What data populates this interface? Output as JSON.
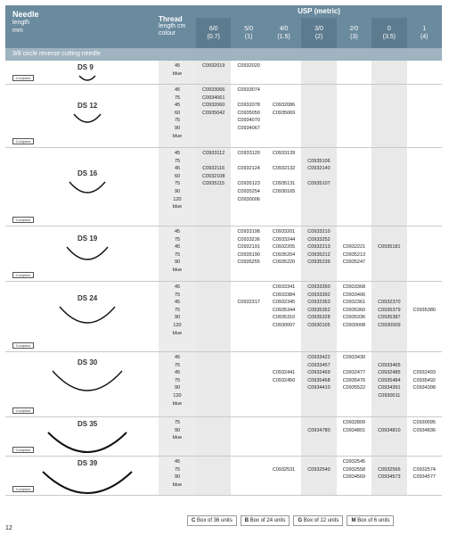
{
  "header": {
    "needle_title": "Needle",
    "needle_sub1": "length",
    "needle_sub2": "mm",
    "thread_title": "Thread",
    "thread_sub1": "length cm",
    "thread_sub2": "colour",
    "usp_title": "USP (metric)",
    "usp_columns": [
      {
        "l1": "6/0",
        "l2": "(0.7)"
      },
      {
        "l1": "5/0",
        "l2": "(1)"
      },
      {
        "l1": "4/0",
        "l2": "(1.5)"
      },
      {
        "l1": "3/0",
        "l2": "(2)"
      },
      {
        "l1": "2/0",
        "l2": "(3)"
      },
      {
        "l1": "0",
        "l2": "(3.5)"
      },
      {
        "l1": "1",
        "l2": "(4)"
      }
    ]
  },
  "subheader": "3/8 circle reverse cutting needle",
  "badge_text": "Coviprice",
  "rows": [
    {
      "name": "DS 9",
      "threads": [
        "45",
        "blue"
      ],
      "cols": [
        [
          "C0932019"
        ],
        [
          "C0932020"
        ],
        [],
        [],
        [],
        [],
        []
      ]
    },
    {
      "name": "DS 12",
      "threads": [
        "45",
        "75",
        "45",
        "60",
        "75",
        "90",
        "blue"
      ],
      "cols": [
        [
          "C0933066",
          "C0934061",
          "C0932060",
          "C0935042"
        ],
        [
          "C0933074",
          "",
          "C0932078",
          "C0935050",
          "C0934070",
          "C0934067"
        ],
        [
          "",
          "",
          "C0932086",
          "C0935069"
        ],
        [],
        [],
        [],
        []
      ]
    },
    {
      "name": "DS 16",
      "threads": [
        "45",
        "75",
        "45",
        "60",
        "75",
        "90",
        "120",
        "blue"
      ],
      "cols": [
        [
          "C0933112",
          "",
          "C0932116",
          "C0932108",
          "C0935115"
        ],
        [
          "C0933120",
          "",
          "C0932124",
          "",
          "C0935123",
          "C0935254",
          "C0930006"
        ],
        [
          "C0933139",
          "",
          "C0932132",
          "",
          "C0935131",
          "C0930165"
        ],
        [
          "",
          "C0935106",
          "C0932140",
          "",
          "C0935107"
        ],
        [],
        [],
        []
      ]
    },
    {
      "name": "DS 19",
      "threads": [
        "45",
        "75",
        "45",
        "75",
        "90",
        "blue"
      ],
      "cols": [
        [],
        [
          "C0933198",
          "C0933236",
          "C0932191",
          "C0935190",
          "C0935255"
        ],
        [
          "C0933201",
          "C0933244",
          "C0932205",
          "C0935204",
          "C0935220"
        ],
        [
          "C0933210",
          "C0933252",
          "C0932213",
          "C0935212",
          "C0935239"
        ],
        [
          "",
          "",
          "C0932221",
          "C0935213",
          "C0935247"
        ],
        [
          "",
          "",
          "C0935181"
        ],
        []
      ]
    },
    {
      "name": "DS 24",
      "threads": [
        "45",
        "75",
        "45",
        "75",
        "90",
        "120",
        "blue"
      ],
      "cols": [
        [],
        [
          "",
          "",
          "C0932317"
        ],
        [
          "C0933341",
          "C0933384",
          "C0932345",
          "C0935344",
          "C0935310",
          "C0930007"
        ],
        [
          "C0933350",
          "C0933392",
          "C0932353",
          "C0935352",
          "C0935328",
          "C0930105"
        ],
        [
          "C0933368",
          "C0933406",
          "C0932361",
          "C0935360",
          "C0935336",
          "C0930008"
        ],
        [
          "",
          "",
          "C0932370",
          "C0935379",
          "C0935387",
          "C0930009"
        ],
        [
          "",
          "",
          "",
          "C0935380"
        ]
      ]
    },
    {
      "name": "DS 30",
      "threads": [
        "45",
        "75",
        "45",
        "75",
        "90",
        "120",
        "blue"
      ],
      "cols": [
        [],
        [],
        [
          "",
          "",
          "C0932441",
          "C0932450"
        ],
        [
          "C0933422",
          "C0933457",
          "C0932469",
          "C0935468",
          "C0934410"
        ],
        [
          "C0933430",
          "",
          "C0932477",
          "C0935476",
          "C0935522"
        ],
        [
          "",
          "C0933465",
          "C0932485",
          "C0935484",
          "C0934391",
          "C0930011"
        ],
        [
          "",
          "",
          "C0932493",
          "C0935492",
          "C0934398"
        ]
      ]
    },
    {
      "name": "DS 35",
      "threads": [
        "75",
        "90",
        "blue"
      ],
      "cols": [
        [],
        [],
        [],
        [
          "",
          "C0934780"
        ],
        [
          "C0932809",
          "C0934801"
        ],
        [
          "",
          "C0934810"
        ],
        [
          "C0930095",
          "C0934836"
        ]
      ]
    },
    {
      "name": "DS 39",
      "threads": [
        "45",
        "75",
        "90",
        "blue"
      ],
      "cols": [
        [],
        [],
        [
          "",
          "C0932531"
        ],
        [
          "",
          "C0932540"
        ],
        [
          "C0932545",
          "C0932558",
          "C0934569"
        ],
        [
          "",
          "C0932566",
          "C0934573"
        ],
        [
          "",
          "C0932574",
          "C0934577"
        ]
      ]
    }
  ],
  "legend": [
    {
      "letter": "C",
      "text": "Box of 36 units"
    },
    {
      "letter": "B",
      "text": "Box of 24 units"
    },
    {
      "letter": "G",
      "text": "Box of 12 units"
    },
    {
      "letter": "M",
      "text": "Box of 6 units"
    }
  ],
  "page_number": "12"
}
